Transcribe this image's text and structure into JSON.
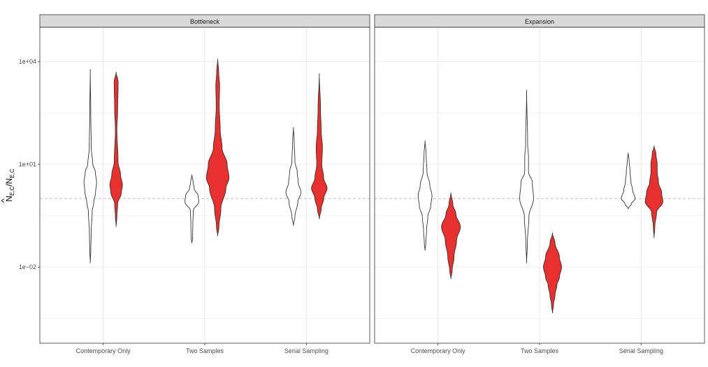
{
  "chart_data": {
    "type": "violin",
    "ylabel": {
      "main": "N",
      "hat": "^",
      "sub1": "E,C",
      "sep": "/N",
      "sub2": "E,C"
    },
    "yscale": "log10",
    "ylim": [
      6e-05,
      100000
    ],
    "yticks": [
      {
        "value": 0.01,
        "label": "1e−02"
      },
      {
        "value": 10,
        "label": "1e+01"
      },
      {
        "value": 10000,
        "label": "1e+04"
      }
    ],
    "reference_line": {
      "value": 1.0,
      "style": "dashed",
      "color": "#bdbdbd"
    },
    "categories": [
      "Contemporary Only",
      "Two Samples",
      "Serial Sampling"
    ],
    "fill_colors": [
      "#ffffff",
      "#e8302e"
    ],
    "grid": true,
    "panels": [
      {
        "title": "Bottleneck",
        "groups": [
          {
            "category": "Contemporary Only",
            "violins": [
              {
                "fill": 0,
                "profile": [
                  [
                    0.013,
                    0.0
                  ],
                  [
                    0.03,
                    0.04
                  ],
                  [
                    0.1,
                    0.07
                  ],
                  [
                    0.4,
                    0.15
                  ],
                  [
                    0.8,
                    0.28
                  ],
                  [
                    1.5,
                    0.42
                  ],
                  [
                    3,
                    0.5
                  ],
                  [
                    6,
                    0.4
                  ],
                  [
                    10,
                    0.2
                  ],
                  [
                    30,
                    0.08
                  ],
                  [
                    300,
                    0.04
                  ],
                  [
                    6000,
                    0.0
                  ]
                ]
              },
              {
                "fill": 1,
                "profile": [
                  [
                    0.15,
                    0.0
                  ],
                  [
                    0.3,
                    0.06
                  ],
                  [
                    0.7,
                    0.12
                  ],
                  [
                    1.5,
                    0.42
                  ],
                  [
                    2.5,
                    0.5
                  ],
                  [
                    5,
                    0.35
                  ],
                  [
                    12,
                    0.15
                  ],
                  [
                    100,
                    0.06
                  ],
                  [
                    400,
                    0.12
                  ],
                  [
                    2500,
                    0.16
                  ],
                  [
                    5000,
                    0.0
                  ]
                ]
              }
            ]
          },
          {
            "category": "Two Samples",
            "violins": [
              {
                "fill": 0,
                "profile": [
                  [
                    0.05,
                    0.0
                  ],
                  [
                    0.07,
                    0.06
                  ],
                  [
                    0.2,
                    0.08
                  ],
                  [
                    0.45,
                    0.12
                  ],
                  [
                    0.8,
                    0.55
                  ],
                  [
                    1.2,
                    0.5
                  ],
                  [
                    2,
                    0.18
                  ],
                  [
                    3,
                    0.1
                  ],
                  [
                    5,
                    0.0
                  ]
                ]
              },
              {
                "fill": 1,
                "profile": [
                  [
                    0.08,
                    0.0
                  ],
                  [
                    0.15,
                    0.1
                  ],
                  [
                    0.5,
                    0.25
                  ],
                  [
                    2,
                    0.65
                  ],
                  [
                    4,
                    0.9
                  ],
                  [
                    10,
                    0.75
                  ],
                  [
                    30,
                    0.35
                  ],
                  [
                    100,
                    0.2
                  ],
                  [
                    500,
                    0.12
                  ],
                  [
                    2000,
                    0.15
                  ],
                  [
                    5000,
                    0.08
                  ],
                  [
                    12000,
                    0.0
                  ]
                ]
              }
            ]
          },
          {
            "category": "Serial Sampling",
            "violins": [
              {
                "fill": 0,
                "profile": [
                  [
                    0.16,
                    0.0
                  ],
                  [
                    0.3,
                    0.12
                  ],
                  [
                    0.8,
                    0.35
                  ],
                  [
                    1.5,
                    0.6
                  ],
                  [
                    3,
                    0.38
                  ],
                  [
                    6,
                    0.3
                  ],
                  [
                    12,
                    0.12
                  ],
                  [
                    50,
                    0.06
                  ],
                  [
                    120,
                    0.0
                  ]
                ]
              },
              {
                "fill": 1,
                "profile": [
                  [
                    0.25,
                    0.0
                  ],
                  [
                    0.5,
                    0.15
                  ],
                  [
                    1,
                    0.35
                  ],
                  [
                    2,
                    0.62
                  ],
                  [
                    4,
                    0.35
                  ],
                  [
                    10,
                    0.2
                  ],
                  [
                    30,
                    0.25
                  ],
                  [
                    100,
                    0.15
                  ],
                  [
                    400,
                    0.1
                  ],
                  [
                    4500,
                    0.0
                  ]
                ]
              }
            ]
          }
        ]
      },
      {
        "title": "Expansion",
        "groups": [
          {
            "category": "Contemporary Only",
            "violins": [
              {
                "fill": 0,
                "profile": [
                  [
                    0.03,
                    0.0
                  ],
                  [
                    0.05,
                    0.06
                  ],
                  [
                    0.12,
                    0.12
                  ],
                  [
                    0.3,
                    0.22
                  ],
                  [
                    0.6,
                    0.45
                  ],
                  [
                    1.2,
                    0.55
                  ],
                  [
                    2.5,
                    0.38
                  ],
                  [
                    6,
                    0.15
                  ],
                  [
                    20,
                    0.08
                  ],
                  [
                    50,
                    0.0
                  ]
                ]
              },
              {
                "fill": 1,
                "profile": [
                  [
                    0.0045,
                    0.0
                  ],
                  [
                    0.008,
                    0.1
                  ],
                  [
                    0.02,
                    0.25
                  ],
                  [
                    0.06,
                    0.45
                  ],
                  [
                    0.15,
                    0.75
                  ],
                  [
                    0.35,
                    0.4
                  ],
                  [
                    0.7,
                    0.15
                  ],
                  [
                    1.5,
                    0.0
                  ]
                ]
              }
            ]
          },
          {
            "category": "Two Samples",
            "violins": [
              {
                "fill": 0,
                "profile": [
                  [
                    0.013,
                    0.0
                  ],
                  [
                    0.05,
                    0.06
                  ],
                  [
                    0.3,
                    0.18
                  ],
                  [
                    1,
                    0.55
                  ],
                  [
                    3,
                    0.45
                  ],
                  [
                    6,
                    0.15
                  ],
                  [
                    15,
                    0.15
                  ],
                  [
                    40,
                    0.08
                  ],
                  [
                    1500,
                    0.0
                  ]
                ]
              },
              {
                "fill": 1,
                "profile": [
                  [
                    0.00045,
                    0.0
                  ],
                  [
                    0.0008,
                    0.08
                  ],
                  [
                    0.0015,
                    0.2
                  ],
                  [
                    0.003,
                    0.35
                  ],
                  [
                    0.005,
                    0.55
                  ],
                  [
                    0.01,
                    0.72
                  ],
                  [
                    0.02,
                    0.55
                  ],
                  [
                    0.05,
                    0.2
                  ],
                  [
                    0.1,
                    0.0
                  ]
                ]
              }
            ]
          },
          {
            "category": "Serial Sampling",
            "violins": [
              {
                "fill": 0,
                "profile": [
                  [
                    0.5,
                    0.0
                  ],
                  [
                    0.7,
                    0.25
                  ],
                  [
                    1,
                    0.55
                  ],
                  [
                    1.8,
                    0.35
                  ],
                  [
                    3,
                    0.22
                  ],
                  [
                    6,
                    0.15
                  ],
                  [
                    12,
                    0.08
                  ],
                  [
                    22,
                    0.0
                  ]
                ]
              },
              {
                "fill": 1,
                "profile": [
                  [
                    0.07,
                    0.0
                  ],
                  [
                    0.15,
                    0.06
                  ],
                  [
                    0.4,
                    0.2
                  ],
                  [
                    0.8,
                    0.7
                  ],
                  [
                    1.5,
                    0.6
                  ],
                  [
                    3,
                    0.35
                  ],
                  [
                    6,
                    0.25
                  ],
                  [
                    10,
                    0.25
                  ],
                  [
                    20,
                    0.15
                  ],
                  [
                    35,
                    0.0
                  ]
                ]
              }
            ]
          }
        ]
      }
    ]
  }
}
